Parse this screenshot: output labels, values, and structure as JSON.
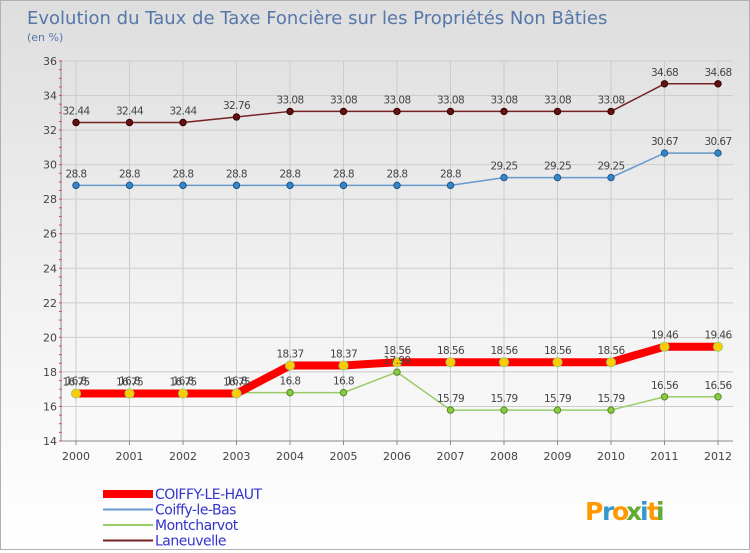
{
  "chart_data": {
    "type": "line",
    "title": "Evolution du Taux de Taxe Foncière sur les Propriétés Non Bâties",
    "ylabel": "(en %)",
    "xlabel": "",
    "x": [
      "2000",
      "2001",
      "2002",
      "2003",
      "2004",
      "2005",
      "2006",
      "2007",
      "2008",
      "2009",
      "2010",
      "2011",
      "2012"
    ],
    "ylim": [
      14,
      36
    ],
    "yticks": [
      14,
      16,
      18,
      20,
      22,
      24,
      26,
      28,
      30,
      32,
      34,
      36
    ],
    "grid": true,
    "legend": "bottom-left",
    "series": [
      {
        "name": "COIFFY-LE-HAUT",
        "color": "#ff0000",
        "values": [
          16.75,
          16.75,
          16.75,
          16.75,
          18.37,
          18.37,
          18.56,
          18.56,
          18.56,
          18.56,
          18.56,
          19.46,
          19.46
        ],
        "labels": [
          "16.75",
          "16.75",
          "16.75",
          "16.75",
          "18.37",
          "18.37",
          "18.56",
          "18.56",
          "18.56",
          "18.56",
          "18.56",
          "19.46",
          "19.46"
        ]
      },
      {
        "name": "Coiffy-le-Bas",
        "color": "#6699cc",
        "values": [
          28.8,
          28.8,
          28.8,
          28.8,
          28.8,
          28.8,
          28.8,
          28.8,
          29.25,
          29.25,
          29.25,
          30.67,
          30.67
        ],
        "labels": [
          "28.8",
          "28.8",
          "28.8",
          "28.8",
          "28.8",
          "28.8",
          "28.8",
          "28.8",
          "29.25",
          "29.25",
          "29.25",
          "30.67",
          "30.67"
        ]
      },
      {
        "name": "Montcharvot",
        "color": "#99cc66",
        "values": [
          16.8,
          16.8,
          16.8,
          16.8,
          16.8,
          16.8,
          17.99,
          15.79,
          15.79,
          15.79,
          15.79,
          16.56,
          16.56
        ],
        "labels": [
          "16.8",
          "16.8",
          "16.8",
          "16.8",
          "16.8",
          "16.8",
          "17.99",
          "15.79",
          "15.79",
          "15.79",
          "15.79",
          "16.56",
          "16.56"
        ]
      },
      {
        "name": "Laneuvelle",
        "color": "#772222",
        "values": [
          32.44,
          32.44,
          32.44,
          32.76,
          33.08,
          33.08,
          33.08,
          33.08,
          33.08,
          33.08,
          33.08,
          34.68,
          34.68
        ],
        "labels": [
          "32.44",
          "32.44",
          "32.44",
          "32.76",
          "33.08",
          "33.08",
          "33.08",
          "33.08",
          "33.08",
          "33.08",
          "33.08",
          "34.68",
          "34.68"
        ]
      }
    ]
  },
  "brand": {
    "logo_text": "Proxiti",
    "letters": [
      "P",
      "r",
      "o",
      "x",
      "i",
      "t",
      "i"
    ],
    "letter_colors": [
      "#ff9900",
      "#3399cc",
      "#ff9900",
      "#66aa33",
      "#3399cc",
      "#ff9900",
      "#66aa33"
    ]
  }
}
